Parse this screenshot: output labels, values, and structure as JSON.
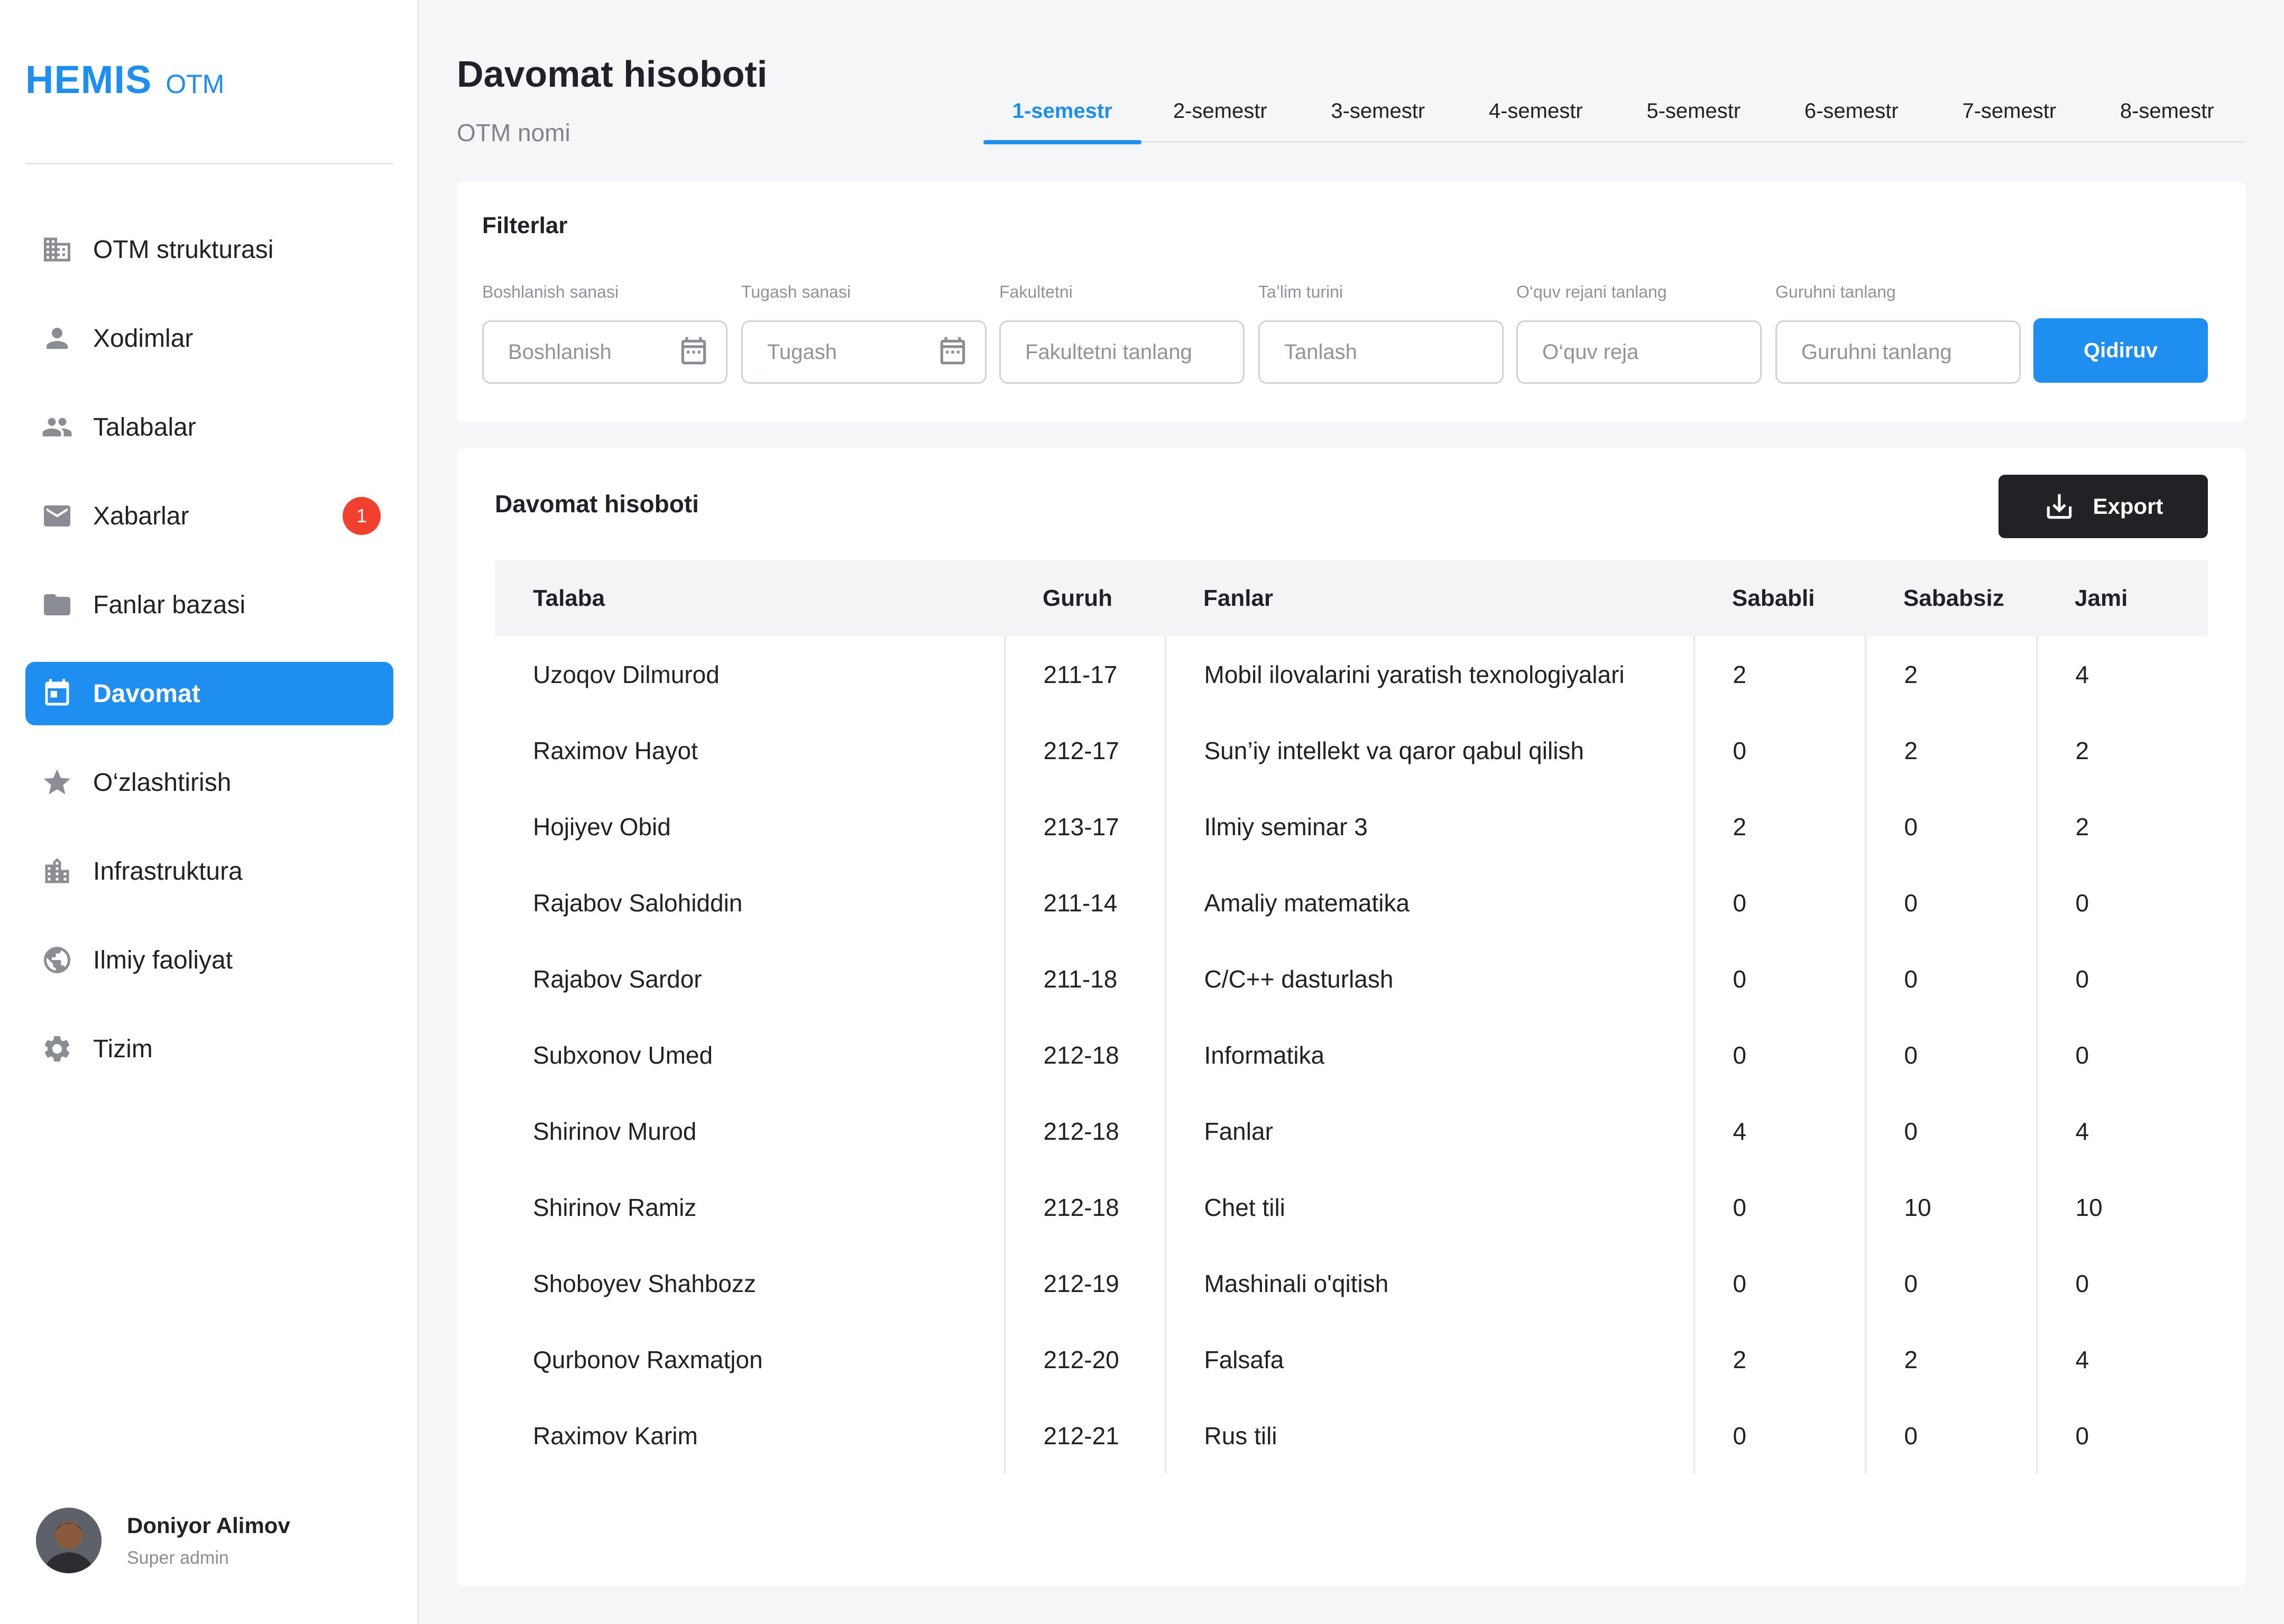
{
  "app": {
    "brand_name": "HEMIS",
    "brand_sub": "OTM"
  },
  "sidebar": {
    "items": [
      {
        "label": "OTM strukturasi",
        "icon": "building-icon"
      },
      {
        "label": "Xodimlar",
        "icon": "person-icon"
      },
      {
        "label": "Talabalar",
        "icon": "group-icon"
      },
      {
        "label": "Xabarlar",
        "icon": "mail-icon",
        "badge": "1"
      },
      {
        "label": "Fanlar bazasi",
        "icon": "folder-icon"
      },
      {
        "label": "Davomat",
        "icon": "calendar-icon",
        "active": true
      },
      {
        "label": "O‘zlashtirish",
        "icon": "star-icon"
      },
      {
        "label": "Infrastruktura",
        "icon": "office-icon"
      },
      {
        "label": "Ilmiy faoliyat",
        "icon": "globe-icon"
      },
      {
        "label": "Tizim",
        "icon": "gear-icon"
      }
    ],
    "user": {
      "name": "Doniyor Alimov",
      "role": "Super admin"
    }
  },
  "header": {
    "title": "Davomat hisoboti",
    "subtitle": "OTM nomi",
    "tabs": [
      "1-semestr",
      "2-semestr",
      "3-semestr",
      "4-semestr",
      "5-semestr",
      "6-semestr",
      "7-semestr",
      "8-semestr"
    ],
    "active_tab": 0
  },
  "filters": {
    "title": "Filterlar",
    "fields": [
      {
        "label": "Boshlanish sanasi",
        "placeholder": "Boshlanish",
        "icon": "calendar-icon"
      },
      {
        "label": "Tugash sanasi",
        "placeholder": "Tugash",
        "icon": "calendar-icon"
      },
      {
        "label": "Fakultetni",
        "placeholder": "Fakultetni tanlang"
      },
      {
        "label": "Ta’lim turini",
        "placeholder": "Tanlash"
      },
      {
        "label": "O‘quv rejani tanlang",
        "placeholder": "O‘quv reja"
      },
      {
        "label": "Guruhni tanlang",
        "placeholder": "Guruhni tanlang"
      }
    ],
    "search_label": "Qidiruv"
  },
  "report": {
    "title": "Davomat hisoboti",
    "export_label": "Export",
    "columns": [
      "Talaba",
      "Guruh",
      "Fanlar",
      "Sababli",
      "Sababsiz",
      "Jami"
    ],
    "rows": [
      [
        "Uzoqov Dilmurod",
        "211-17",
        "Mobil ilovalarini yaratish texnologiyalari",
        "2",
        "2",
        "4"
      ],
      [
        "Raximov Hayot",
        "212-17",
        "Sun’iy intellekt va qaror qabul qilish",
        "0",
        "2",
        "2"
      ],
      [
        "Hojiyev Obid",
        "213-17",
        "Ilmiy seminar 3",
        "2",
        "0",
        "2"
      ],
      [
        "Rajabov Salohiddin",
        "211-14",
        "Amaliy matematika",
        "0",
        "0",
        "0"
      ],
      [
        "Rajabov Sardor",
        "211-18",
        "C/C++ dasturlash",
        "0",
        "0",
        "0"
      ],
      [
        "Subxonov Umed",
        "212-18",
        "Informatika",
        "0",
        "0",
        "0"
      ],
      [
        "Shirinov Murod",
        "212-18",
        "Fanlar",
        "4",
        "0",
        "4"
      ],
      [
        "Shirinov Ramiz",
        "212-18",
        "Chet tili",
        "0",
        "10",
        "10"
      ],
      [
        "Shoboyev Shahbozz",
        "212-19",
        "Mashinali o'qitish",
        "0",
        "0",
        "0"
      ],
      [
        "Qurbonov Raxmatjon",
        "212-20",
        "Falsafa",
        "2",
        "2",
        "4"
      ],
      [
        "Raximov Karim",
        "212-21",
        "Rus tili",
        "0",
        "0",
        "0"
      ]
    ]
  },
  "colors": {
    "accent": "#1f8ef1",
    "badge": "#f2402f",
    "dark_button": "#202226"
  }
}
